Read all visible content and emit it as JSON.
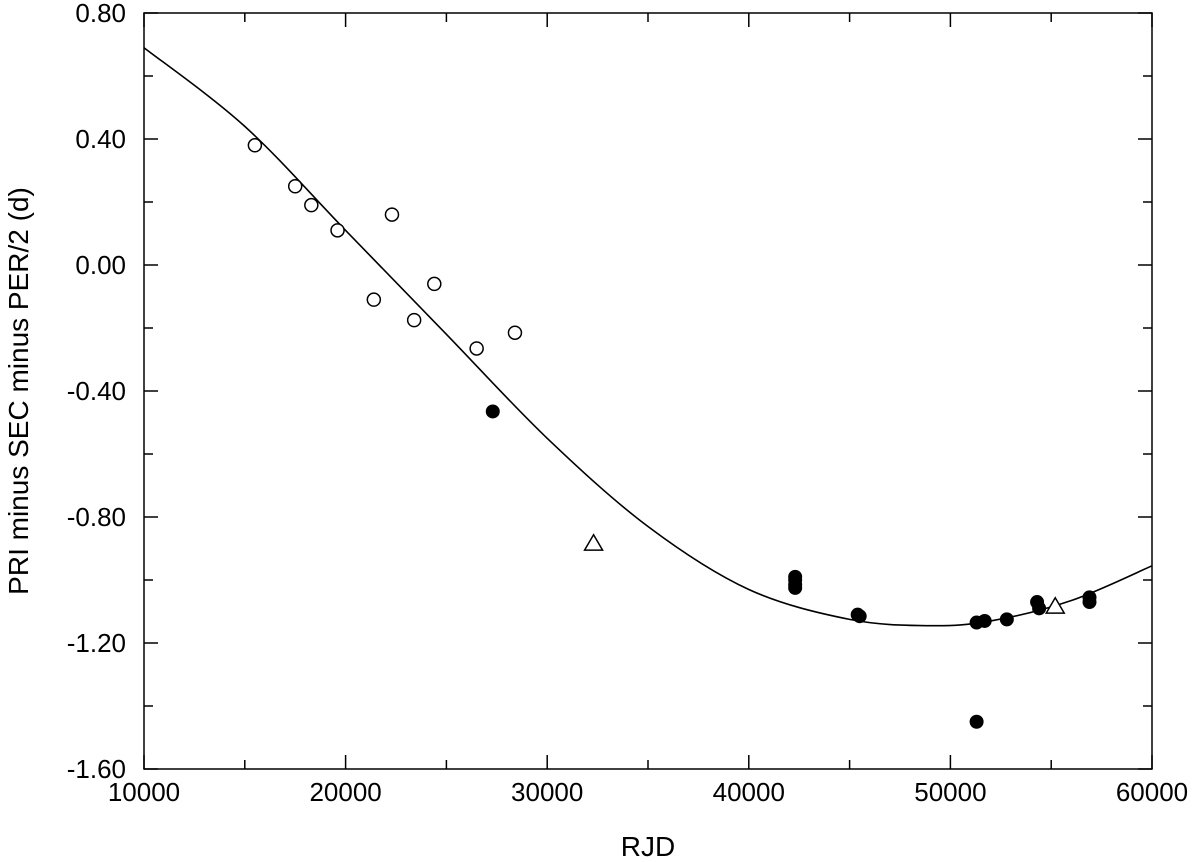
{
  "chart_data": {
    "type": "scatter",
    "title": "",
    "xlabel": "RJD",
    "ylabel": "PRI minus SEC minus PER/2 (d)",
    "xlim": [
      10000,
      60000
    ],
    "ylim": [
      -1.6,
      0.8
    ],
    "grid": false,
    "legend": "none",
    "x_ticks": [
      10000,
      20000,
      30000,
      40000,
      50000,
      60000
    ],
    "x_tick_labels": [
      "10000",
      "20000",
      "30000",
      "40000",
      "50000",
      "60000"
    ],
    "y_ticks": [
      0.8,
      0.4,
      0.0,
      -0.4,
      -0.8,
      -1.2,
      -1.6
    ],
    "y_tick_labels": [
      "0.80",
      "0.40",
      "0.00",
      "-0.40",
      "-0.80",
      "-1.20",
      "-1.60"
    ],
    "series": [
      {
        "marker": "open-circle",
        "color": "#000000",
        "points": [
          {
            "x": 15500,
            "y": 0.38
          },
          {
            "x": 17500,
            "y": 0.25
          },
          {
            "x": 18300,
            "y": 0.19
          },
          {
            "x": 19600,
            "y": 0.11
          },
          {
            "x": 21400,
            "y": -0.11
          },
          {
            "x": 22300,
            "y": 0.16
          },
          {
            "x": 23400,
            "y": -0.175
          },
          {
            "x": 24400,
            "y": -0.06
          },
          {
            "x": 26500,
            "y": -0.265
          },
          {
            "x": 28400,
            "y": -0.215
          }
        ]
      },
      {
        "marker": "filled-circle",
        "color": "#000000",
        "points": [
          {
            "x": 27300,
            "y": -0.465
          },
          {
            "x": 42300,
            "y": -0.99
          },
          {
            "x": 42300,
            "y": -1.0
          },
          {
            "x": 42300,
            "y": -1.015
          },
          {
            "x": 42300,
            "y": -1.025
          },
          {
            "x": 45400,
            "y": -1.11
          },
          {
            "x": 45500,
            "y": -1.115
          },
          {
            "x": 51300,
            "y": -1.135
          },
          {
            "x": 51700,
            "y": -1.13
          },
          {
            "x": 52800,
            "y": -1.125
          },
          {
            "x": 54300,
            "y": -1.07
          },
          {
            "x": 54400,
            "y": -1.09
          },
          {
            "x": 56900,
            "y": -1.055
          },
          {
            "x": 56900,
            "y": -1.07
          },
          {
            "x": 51300,
            "y": -1.45
          }
        ]
      },
      {
        "marker": "open-triangle",
        "color": "#000000",
        "points": [
          {
            "x": 32300,
            "y": -0.885
          },
          {
            "x": 55200,
            "y": -1.085
          }
        ]
      },
      {
        "type": "line",
        "color": "#000000",
        "points": [
          {
            "x": 10000,
            "y": 0.69
          },
          {
            "x": 15000,
            "y": 0.44
          },
          {
            "x": 20000,
            "y": 0.11
          },
          {
            "x": 25000,
            "y": -0.22
          },
          {
            "x": 30000,
            "y": -0.55
          },
          {
            "x": 35000,
            "y": -0.83
          },
          {
            "x": 40000,
            "y": -1.03
          },
          {
            "x": 45000,
            "y": -1.125
          },
          {
            "x": 49000,
            "y": -1.145
          },
          {
            "x": 52000,
            "y": -1.13
          },
          {
            "x": 56000,
            "y": -1.065
          },
          {
            "x": 60000,
            "y": -0.955
          }
        ]
      }
    ]
  }
}
